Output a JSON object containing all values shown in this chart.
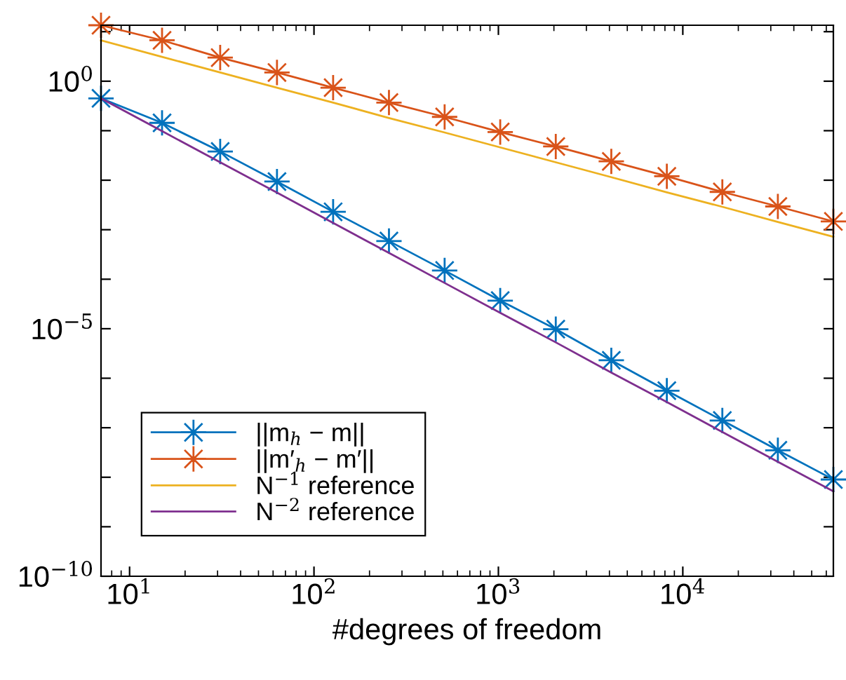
{
  "chart_data": {
    "type": "line",
    "xlabel": "#degrees of freedom",
    "log": "xy",
    "x": [
      7,
      15,
      31,
      63,
      127,
      255,
      511,
      1023,
      2047,
      4095,
      8191,
      16383,
      32767,
      65535
    ],
    "series": [
      {
        "name": "||m$_{h}$ − m||",
        "color": "#0072bd",
        "marker": "star",
        "values": [
          0.45,
          0.144,
          0.038,
          0.0094,
          0.0023,
          0.00059,
          0.00015,
          3.7e-05,
          9.8e-06,
          2.3e-06,
          5.6e-07,
          1.4e-07,
          3.5e-08,
          9e-09
        ]
      },
      {
        "name": "||m′$_{h}$ − m′||",
        "color": "#d95319",
        "marker": "star",
        "values": [
          13.5,
          6.7,
          3.0,
          1.5,
          0.74,
          0.37,
          0.19,
          0.094,
          0.048,
          0.024,
          0.012,
          0.0058,
          0.00295,
          0.00147
        ]
      },
      {
        "name": "N$^{−1}$ reference",
        "color": "#edb120",
        "marker": "none",
        "values": [
          6.7,
          3.1,
          1.5,
          0.74,
          0.37,
          0.18,
          0.092,
          0.046,
          0.023,
          0.0115,
          0.0057,
          0.0029,
          0.00143,
          0.00072
        ]
      },
      {
        "name": "N$^{−2}$ reference",
        "color": "#7e2f8e",
        "marker": "none",
        "values": [
          0.45,
          0.098,
          0.023,
          0.0056,
          0.00137,
          0.00034,
          8.4e-05,
          2.1e-05,
          5.3e-06,
          1.3e-06,
          3.3e-07,
          8.2e-08,
          2.05e-08,
          5.2e-09
        ]
      }
    ],
    "xlim": [
      7,
      65535
    ],
    "ylim": [
      1e-10,
      13.5
    ],
    "xticks": [
      {
        "value": 10,
        "label": "10$^{1}$"
      },
      {
        "value": 100,
        "label": "10$^{2}$"
      },
      {
        "value": 1000,
        "label": "10$^{3}$"
      },
      {
        "value": 10000,
        "label": "10$^{4}$"
      }
    ],
    "yticks": [
      {
        "value": 1e-10,
        "label": "10$^{−10}$"
      },
      {
        "value": 1e-09,
        "label": null
      },
      {
        "value": 1e-08,
        "label": null
      },
      {
        "value": 1e-07,
        "label": null
      },
      {
        "value": 1e-06,
        "label": null
      },
      {
        "value": 1e-05,
        "label": "10$^{−5}$"
      },
      {
        "value": 0.0001,
        "label": null
      },
      {
        "value": 0.001,
        "label": null
      },
      {
        "value": 0.01,
        "label": null
      },
      {
        "value": 0.1,
        "label": null
      },
      {
        "value": 1,
        "label": "10$^{0}$"
      },
      {
        "value": 10,
        "label": null
      }
    ],
    "grid": false,
    "legend": "bottom left",
    "line_style": "solid"
  }
}
